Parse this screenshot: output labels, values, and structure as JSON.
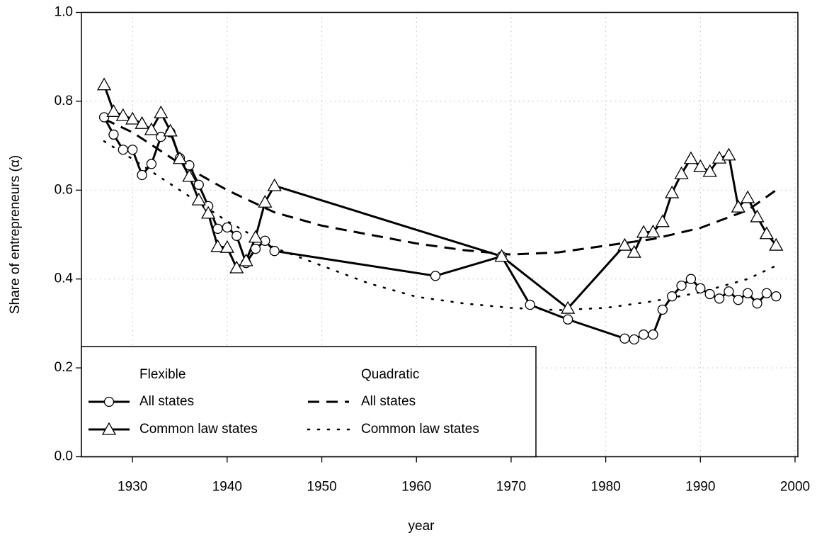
{
  "chart_data": {
    "type": "line",
    "xlabel": "year",
    "ylabel": "Share of entrepreneurs (α)",
    "xlim": [
      1924.6,
      2000.3
    ],
    "xticks": [
      1930,
      1940,
      1950,
      1960,
      1970,
      1980,
      1990,
      2000
    ],
    "ylim": [
      0,
      1
    ],
    "yticks": [
      {
        "value": 0,
        "label": "0.0"
      },
      0.2,
      0.4,
      0.6,
      0.8,
      {
        "value": 1,
        "label": "1.0"
      }
    ],
    "grid": true,
    "legend": "bottom-left",
    "legend_titles": [
      "Flexible",
      "Quadratic"
    ],
    "series": [
      {
        "name": "All states",
        "color": "#000000",
        "dash": "solid",
        "marker": "circle",
        "x": [
          1927,
          1928,
          1929,
          1930,
          1931,
          1932,
          1933,
          1934,
          1935,
          1936,
          1937,
          1938,
          1939,
          1940,
          1941,
          1942,
          1943,
          1944,
          1945,
          1962,
          1969,
          1972,
          1976,
          1982,
          1983,
          1984,
          1985,
          1986,
          1987,
          1988,
          1989,
          1990,
          1991,
          1992,
          1993,
          1994,
          1995,
          1996,
          1997,
          1998
        ],
        "values": [
          0.764,
          0.725,
          0.691,
          0.691,
          0.634,
          0.659,
          0.72,
          0.73,
          0.672,
          0.656,
          0.612,
          0.564,
          0.513,
          0.516,
          0.497,
          0.436,
          0.468,
          0.486,
          0.463,
          0.407,
          0.451,
          0.342,
          0.309,
          0.266,
          0.264,
          0.275,
          0.275,
          0.331,
          0.361,
          0.385,
          0.4,
          0.379,
          0.366,
          0.356,
          0.372,
          0.353,
          0.368,
          0.345,
          0.368,
          0.361
        ]
      },
      {
        "name": "Common law states",
        "color": "#000000",
        "dash": "solid",
        "marker": "triangle",
        "x": [
          1927,
          1928,
          1929,
          1930,
          1931,
          1932,
          1933,
          1934,
          1935,
          1936,
          1937,
          1938,
          1939,
          1940,
          1941,
          1942,
          1943,
          1944,
          1945,
          1969,
          1976,
          1982,
          1983,
          1984,
          1985,
          1986,
          1987,
          1988,
          1989,
          1990,
          1991,
          1992,
          1993,
          1994,
          1995,
          1996,
          1997,
          1998
        ],
        "values": [
          0.837,
          0.777,
          0.768,
          0.76,
          0.75,
          0.736,
          0.774,
          0.733,
          0.671,
          0.631,
          0.578,
          0.548,
          0.473,
          0.471,
          0.425,
          0.441,
          0.494,
          0.573,
          0.61,
          0.451,
          0.334,
          0.476,
          0.46,
          0.505,
          0.506,
          0.529,
          0.594,
          0.637,
          0.671,
          0.653,
          0.642,
          0.672,
          0.679,
          0.562,
          0.583,
          0.54,
          0.502,
          0.476
        ]
      },
      {
        "name": "All states",
        "color": "#000000",
        "dash": "dashed",
        "marker": null,
        "x": [
          1927,
          1930,
          1935,
          1940,
          1945,
          1950,
          1955,
          1960,
          1965,
          1970,
          1975,
          1980,
          1985,
          1990,
          1995,
          1998
        ],
        "values": [
          0.76,
          0.73,
          0.66,
          0.6,
          0.55,
          0.52,
          0.5,
          0.48,
          0.465,
          0.455,
          0.46,
          0.475,
          0.49,
          0.515,
          0.555,
          0.6
        ]
      },
      {
        "name": "Common law states",
        "color": "#000000",
        "dash": "dotted",
        "marker": null,
        "x": [
          1927,
          1930,
          1935,
          1940,
          1945,
          1950,
          1955,
          1960,
          1965,
          1970,
          1975,
          1980,
          1985,
          1990,
          1995,
          1998
        ],
        "values": [
          0.71,
          0.67,
          0.6,
          0.53,
          0.47,
          0.43,
          0.39,
          0.36,
          0.345,
          0.335,
          0.33,
          0.335,
          0.35,
          0.37,
          0.4,
          0.43
        ]
      }
    ]
  }
}
